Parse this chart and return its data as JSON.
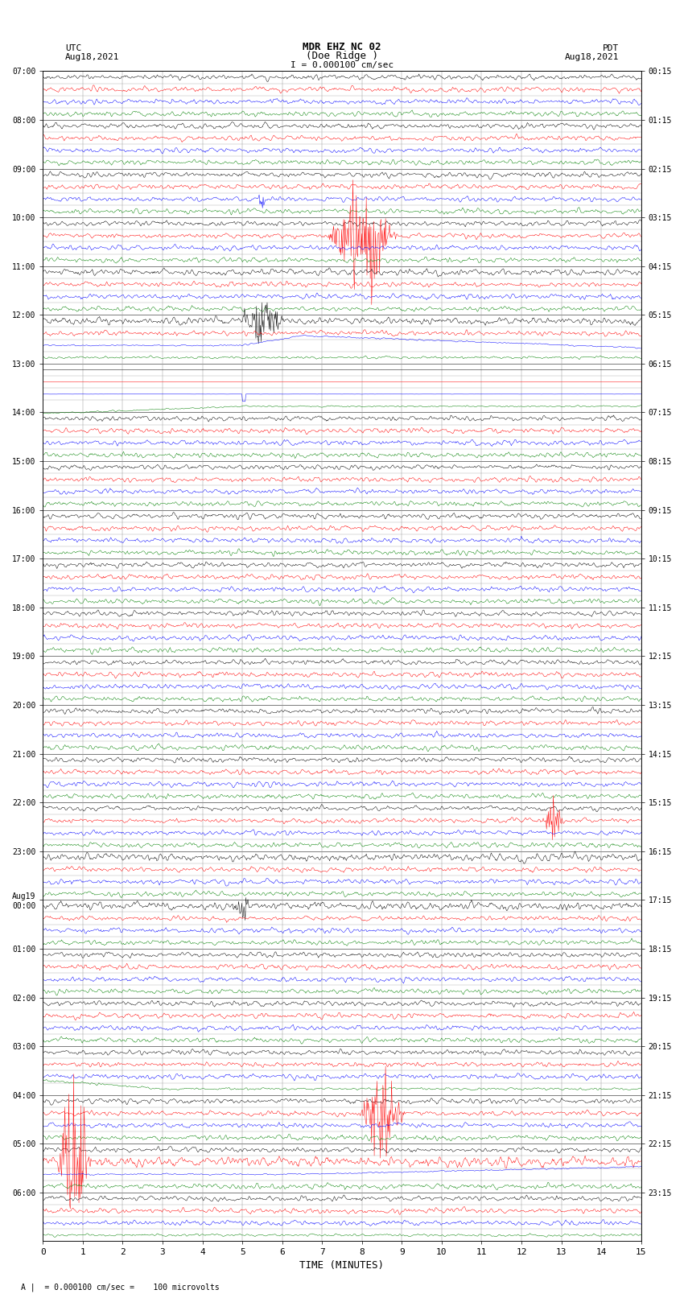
{
  "title_line1": "MDR EHZ NC 02",
  "title_line2": "(Doe Ridge )",
  "scale_label": "I = 0.000100 cm/sec",
  "footer_label": "A |  = 0.000100 cm/sec =    100 microvolts",
  "xlabel": "TIME (MINUTES)",
  "left_header1": "UTC",
  "left_header2": "Aug18,2021",
  "right_header1": "PDT",
  "right_header2": "Aug18,2021",
  "utc_times": [
    "07:00",
    "08:00",
    "09:00",
    "10:00",
    "11:00",
    "12:00",
    "13:00",
    "14:00",
    "15:00",
    "16:00",
    "17:00",
    "18:00",
    "19:00",
    "20:00",
    "21:00",
    "22:00",
    "23:00",
    "Aug19\n00:00",
    "01:00",
    "02:00",
    "03:00",
    "04:00",
    "05:00",
    "06:00"
  ],
  "pdt_times": [
    "00:15",
    "01:15",
    "02:15",
    "03:15",
    "04:15",
    "05:15",
    "06:15",
    "07:15",
    "08:15",
    "09:15",
    "10:15",
    "11:15",
    "12:15",
    "13:15",
    "14:15",
    "15:15",
    "16:15",
    "17:15",
    "18:15",
    "19:15",
    "20:15",
    "21:15",
    "22:15",
    "23:15"
  ],
  "trace_colors": [
    "black",
    "red",
    "blue",
    "green"
  ],
  "bg_color": "#ffffff",
  "grid_color": "#999999",
  "num_rows": 96,
  "x_ticks": [
    0,
    1,
    2,
    3,
    4,
    5,
    6,
    7,
    8,
    9,
    10,
    11,
    12,
    13,
    14,
    15
  ],
  "figsize": [
    8.5,
    16.13
  ],
  "dpi": 100
}
